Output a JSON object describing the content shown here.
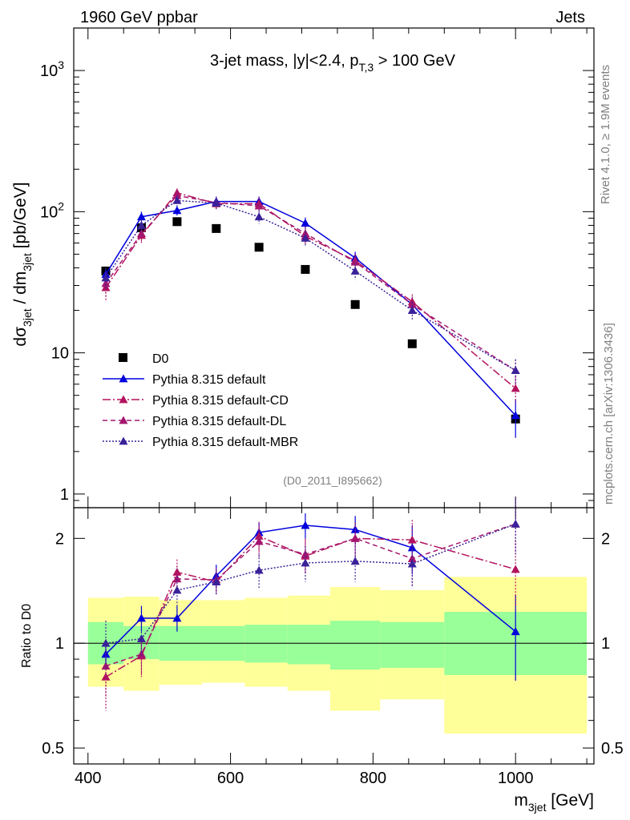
{
  "header": {
    "left": "1960 GeV ppbar",
    "right": "Jets"
  },
  "side": {
    "rivet": "Rivet 4.1.0, ≥ 1.9M events",
    "mcplots": "mcplots.cern.ch [arXiv:1306.3436]"
  },
  "analysis_id": "(D0_2011_I895662)",
  "colors": {
    "data": "#000000",
    "default": "#0000dd",
    "cd": "#b3125e",
    "dl": "#a4166f",
    "mbr": "#3a2199",
    "band_inner": "#99ff99",
    "band_outer": "#ffff99"
  },
  "chart_data": [
    {
      "type": "line",
      "panel": "main",
      "title_parts": {
        "lead": "3-jet mass, |y|<2.4, p",
        "sub": "T,3",
        "tail": " > 100 GeV"
      },
      "ylabel_parts": {
        "a": "dσ",
        "b": "3jet",
        "c": " / dm",
        "d": "3jet",
        "e": " [pb/GeV]"
      },
      "yscale": "log",
      "ylim": [
        0.8,
        2000
      ],
      "xlim": [
        380,
        1110
      ],
      "yticks": [
        {
          "v": 1,
          "label": "1"
        },
        {
          "v": 10,
          "label": "10"
        },
        {
          "v": 100,
          "label": "10",
          "exp": "2"
        },
        {
          "v": 1000,
          "label": "10",
          "exp": "3"
        }
      ],
      "legend_position": "lower-left",
      "x": [
        425,
        475,
        525,
        580,
        640,
        705,
        775,
        855,
        1000
      ],
      "series": [
        {
          "name": "D0",
          "key": "data",
          "marker": "square",
          "values": [
            38,
            77,
            85,
            76,
            56,
            39,
            22,
            11.6,
            3.4
          ]
        },
        {
          "name": "Pythia 8.315 default",
          "key": "default",
          "marker": "triangle",
          "dash": "",
          "values": [
            36,
            92,
            102,
            118,
            118,
            83,
            47,
            22,
            3.6
          ],
          "err": [
            3,
            8,
            8,
            10,
            10,
            8,
            5,
            3,
            1.1
          ]
        },
        {
          "name": "Pythia 8.315 default-CD",
          "key": "cd",
          "marker": "triangle",
          "dash": "10,3,2,3",
          "values": [
            29,
            68,
            136,
            114,
            114,
            67,
            45,
            23,
            5.6
          ],
          "err": [
            6,
            8,
            10,
            10,
            12,
            8,
            5,
            3,
            1.2
          ]
        },
        {
          "name": "Pythia 8.315 default-DL",
          "key": "dl",
          "marker": "triangle",
          "dash": "6,4",
          "values": [
            31,
            70,
            130,
            116,
            110,
            70,
            44,
            22,
            7.5
          ],
          "err": [
            6,
            8,
            10,
            10,
            12,
            8,
            5,
            3,
            1.5
          ]
        },
        {
          "name": "Pythia 8.315 default-MBR",
          "key": "mbr",
          "marker": "triangle",
          "dash": "2,2",
          "values": [
            34,
            80,
            120,
            115,
            92,
            65,
            38,
            20,
            7.5
          ],
          "err": [
            6,
            8,
            10,
            10,
            10,
            8,
            5,
            3,
            1.5
          ]
        }
      ]
    },
    {
      "type": "line",
      "panel": "ratio",
      "ylabel": "Ratio to D0",
      "xlabel_parts": {
        "a": "m",
        "b": "3jet",
        "c": " [GeV]"
      },
      "yscale": "log",
      "ylim": [
        0.45,
        2.45
      ],
      "xticks": [
        {
          "v": 400,
          "label": "400"
        },
        {
          "v": 600,
          "label": "600"
        },
        {
          "v": 800,
          "label": "800"
        },
        {
          "v": 1000,
          "label": "1000"
        }
      ],
      "yticks": [
        {
          "v": 0.5,
          "label": "0.5"
        },
        {
          "v": 1,
          "label": "1"
        },
        {
          "v": 2,
          "label": "2"
        }
      ],
      "bins": [
        [
          400,
          450
        ],
        [
          450,
          500
        ],
        [
          500,
          560
        ],
        [
          560,
          620
        ],
        [
          620,
          680
        ],
        [
          680,
          740
        ],
        [
          740,
          810
        ],
        [
          810,
          900
        ],
        [
          900,
          1100
        ]
      ],
      "band_inner": [
        [
          0.87,
          1.15
        ],
        [
          0.9,
          1.12
        ],
        [
          0.89,
          1.12
        ],
        [
          0.89,
          1.12
        ],
        [
          0.88,
          1.13
        ],
        [
          0.87,
          1.13
        ],
        [
          0.84,
          1.16
        ],
        [
          0.85,
          1.15
        ],
        [
          0.81,
          1.23
        ]
      ],
      "band_outer": [
        [
          0.75,
          1.35
        ],
        [
          0.73,
          1.36
        ],
        [
          0.76,
          1.33
        ],
        [
          0.77,
          1.33
        ],
        [
          0.75,
          1.35
        ],
        [
          0.73,
          1.37
        ],
        [
          0.64,
          1.45
        ],
        [
          0.69,
          1.42
        ],
        [
          0.55,
          1.55
        ]
      ],
      "x": [
        425,
        475,
        525,
        580,
        640,
        705,
        775,
        855,
        1000
      ],
      "series": [
        {
          "name": "Pythia 8.315 default",
          "key": "default",
          "dash": "",
          "values": [
            0.93,
            1.18,
            1.18,
            1.56,
            2.08,
            2.18,
            2.12,
            1.88,
            1.08
          ],
          "err": [
            0.08,
            0.1,
            0.1,
            0.12,
            0.14,
            0.18,
            0.2,
            0.3,
            0.3
          ]
        },
        {
          "name": "Pythia 8.315 default-CD",
          "key": "cd",
          "dash": "10,3,2,3",
          "values": [
            0.8,
            0.92,
            1.6,
            1.5,
            2.03,
            1.78,
            2.0,
            1.98,
            1.63
          ],
          "err": [
            0.16,
            0.12,
            0.14,
            0.12,
            0.2,
            0.2,
            0.22,
            0.28,
            0.35
          ]
        },
        {
          "name": "Pythia 8.315 default-DL",
          "key": "dl",
          "dash": "6,4",
          "values": [
            0.86,
            0.93,
            1.53,
            1.52,
            1.96,
            1.8,
            2.0,
            1.75,
            2.2
          ],
          "err": [
            0.16,
            0.12,
            0.14,
            0.12,
            0.2,
            0.2,
            0.22,
            0.28,
            0.4
          ]
        },
        {
          "name": "Pythia 8.315 default-MBR",
          "key": "mbr",
          "dash": "2,2",
          "values": [
            1.0,
            1.03,
            1.42,
            1.5,
            1.62,
            1.7,
            1.72,
            1.69,
            2.2
          ],
          "err": [
            0.16,
            0.12,
            0.14,
            0.12,
            0.18,
            0.2,
            0.22,
            0.25,
            0.4
          ]
        }
      ]
    }
  ]
}
